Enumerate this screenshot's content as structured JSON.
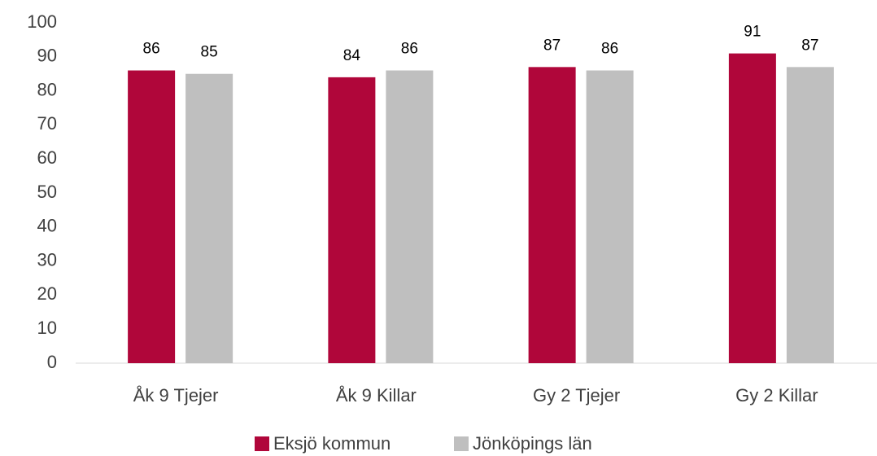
{
  "chart_data": {
    "type": "bar",
    "categories": [
      "Åk 9 Tjejer",
      "Åk 9 Killar",
      "Gy 2 Tjejer",
      "Gy 2 Killar"
    ],
    "series": [
      {
        "name": "Eksjö kommun",
        "color": "#b0063a",
        "values": [
          86,
          84,
          87,
          91
        ]
      },
      {
        "name": "Jönköpings län",
        "color": "#bfbfbf",
        "values": [
          85,
          86,
          86,
          87
        ]
      }
    ],
    "ylim": [
      0,
      100
    ],
    "yticks": [
      0,
      10,
      20,
      30,
      40,
      50,
      60,
      70,
      80,
      90,
      100
    ],
    "grid": false,
    "legend": "bottom"
  }
}
